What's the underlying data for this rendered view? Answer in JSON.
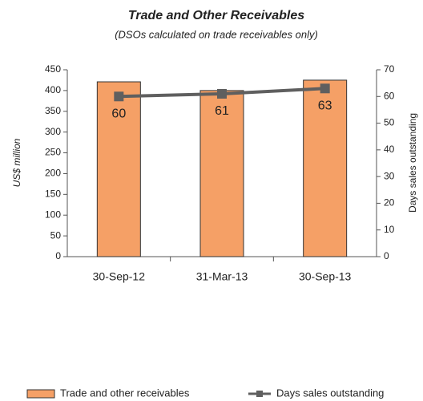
{
  "chart_data": {
    "type": "bar",
    "title": "Trade and Other Receivables",
    "subtitle": "(DSOs calculated on trade receivables only)",
    "y_label": "US$ million",
    "y2_label": "Days sales outstanding",
    "categories": [
      "30-Sep-12",
      "31-Mar-13",
      "30-Sep-13"
    ],
    "series": [
      {
        "name": "Trade and other receivables",
        "type": "bar",
        "color": "#f5a066",
        "values": [
          421,
          400,
          425
        ]
      },
      {
        "name": "Days sales outstanding",
        "type": "line",
        "color": "#5f5f5f",
        "axis": "y2",
        "values": [
          60,
          61,
          63
        ]
      }
    ],
    "ylim": [
      0,
      450
    ],
    "yticks": [
      0,
      50,
      100,
      150,
      200,
      250,
      300,
      350,
      400,
      450
    ],
    "y2lim": [
      0,
      70
    ],
    "y2ticks": [
      0,
      10,
      20,
      30,
      40,
      50,
      60,
      70
    ],
    "legend": "bottom"
  }
}
